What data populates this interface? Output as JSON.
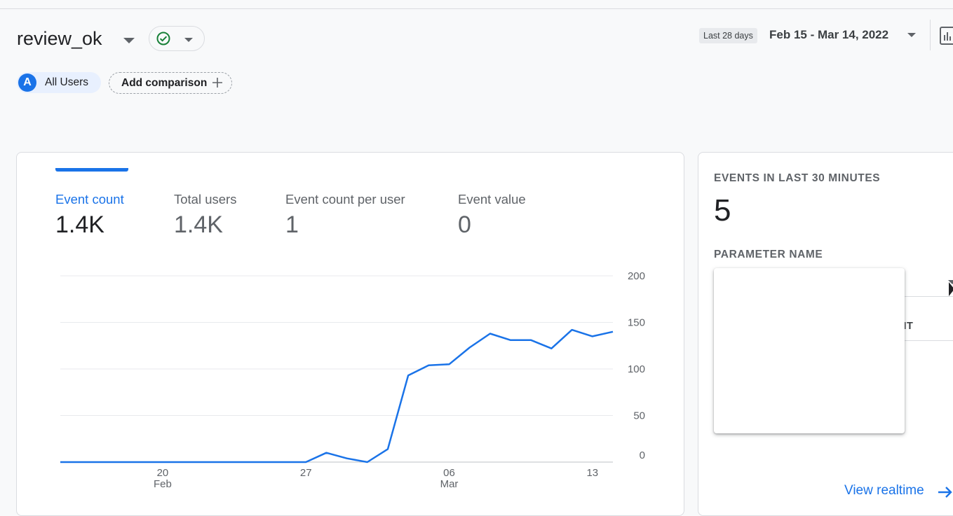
{
  "header": {
    "title": "review_ok",
    "date_range_chip": "Last 28 days",
    "date_range": "Feb 15 - Mar 14, 2022"
  },
  "comparison": {
    "segment_avatar": "A",
    "segment_label": "All Users",
    "add_comparison": "Add comparison"
  },
  "metrics": [
    {
      "label": "Event count",
      "value": "1.4K"
    },
    {
      "label": "Total users",
      "value": "1.4K"
    },
    {
      "label": "Event count per user",
      "value": "1"
    },
    {
      "label": "Event value",
      "value": "0"
    }
  ],
  "realtime": {
    "heading": "EVENTS IN LAST 30 MINUTES",
    "value": "5",
    "parameter_heading": "PARAMETER NAME",
    "column_partial": "NT",
    "link": "View realtime"
  },
  "colors": {
    "accent": "#1a73e8",
    "success": "#188038"
  },
  "chart_data": {
    "type": "line",
    "x_tick_labels": [
      {
        "day": "20",
        "month": "Feb"
      },
      {
        "day": "27",
        "month": ""
      },
      {
        "day": "06",
        "month": "Mar"
      },
      {
        "day": "13",
        "month": ""
      }
    ],
    "y_tick_labels": [
      "200",
      "150",
      "100",
      "50",
      "0"
    ],
    "ylim": [
      0,
      200
    ],
    "x": [
      "2022-02-15",
      "2022-02-16",
      "2022-02-17",
      "2022-02-18",
      "2022-02-19",
      "2022-02-20",
      "2022-02-21",
      "2022-02-22",
      "2022-02-23",
      "2022-02-24",
      "2022-02-25",
      "2022-02-26",
      "2022-02-27",
      "2022-02-28",
      "2022-03-01",
      "2022-03-02",
      "2022-03-03",
      "2022-03-04",
      "2022-03-05",
      "2022-03-06",
      "2022-03-07",
      "2022-03-08",
      "2022-03-09",
      "2022-03-10",
      "2022-03-11",
      "2022-03-12",
      "2022-03-13",
      "2022-03-14"
    ],
    "series": [
      {
        "values": [
          0,
          0,
          0,
          0,
          0,
          0,
          0,
          0,
          0,
          0,
          0,
          0,
          0,
          10,
          4,
          0,
          14,
          93,
          104,
          105,
          123,
          138,
          131,
          131,
          122,
          142,
          135,
          140
        ]
      }
    ],
    "grid": true,
    "y_axis_side": "right"
  }
}
